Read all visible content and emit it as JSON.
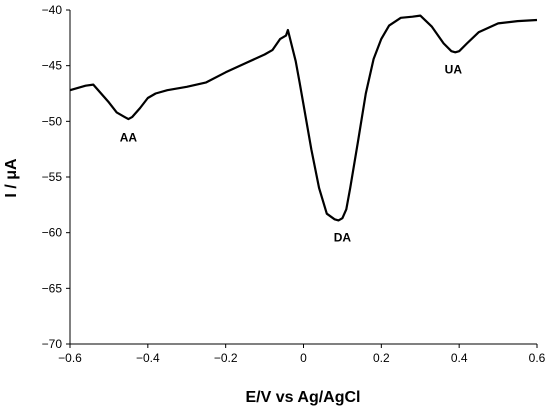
{
  "chart_data": {
    "type": "line",
    "title": "",
    "xlabel": "E/V vs Ag/AgCl",
    "ylabel": "I / μA",
    "xlim": [
      -0.6,
      0.6
    ],
    "ylim": [
      -70,
      -40
    ],
    "grid": false,
    "legend": "none",
    "x_ticks": [
      -0.6,
      -0.4,
      -0.2,
      0,
      0.2,
      0.4,
      0.6
    ],
    "x_tick_labels": [
      "−0.6",
      "−0.4",
      "−0.2",
      "0",
      "0.2",
      "0.4",
      "0.6"
    ],
    "y_ticks": [
      -70,
      -65,
      -60,
      -55,
      -50,
      -45,
      -40
    ],
    "y_tick_labels": [
      "−70",
      "−65",
      "−60",
      "−55",
      "−50",
      "−45",
      "−40"
    ],
    "line_color": "#000000",
    "series": [
      {
        "x": [
          -0.6,
          -0.58,
          -0.56,
          -0.54,
          -0.52,
          -0.5,
          -0.48,
          -0.46,
          -0.45,
          -0.44,
          -0.42,
          -0.4,
          -0.38,
          -0.35,
          -0.3,
          -0.25,
          -0.2,
          -0.15,
          -0.1,
          -0.08,
          -0.06,
          -0.045,
          -0.04,
          -0.03,
          -0.02,
          -0.01,
          0.0,
          0.02,
          0.04,
          0.06,
          0.08,
          0.09,
          0.1,
          0.11,
          0.12,
          0.14,
          0.16,
          0.18,
          0.2,
          0.22,
          0.25,
          0.28,
          0.3,
          0.33,
          0.36,
          0.38,
          0.39,
          0.4,
          0.42,
          0.45,
          0.5,
          0.55,
          0.6
        ],
        "y": [
          -47.2,
          -47.0,
          -46.8,
          -46.7,
          -47.5,
          -48.3,
          -49.2,
          -49.6,
          -49.8,
          -49.6,
          -48.8,
          -47.9,
          -47.5,
          -47.2,
          -46.9,
          -46.5,
          -45.6,
          -44.8,
          -44.0,
          -43.6,
          -42.6,
          -42.3,
          -41.8,
          -43.2,
          -44.6,
          -46.5,
          -48.5,
          -52.5,
          -56.0,
          -58.3,
          -58.8,
          -58.9,
          -58.7,
          -57.9,
          -56.0,
          -51.8,
          -47.5,
          -44.4,
          -42.6,
          -41.4,
          -40.7,
          -40.6,
          -40.5,
          -41.5,
          -43.0,
          -43.7,
          -43.8,
          -43.7,
          -43.0,
          -42.0,
          -41.2,
          -41.0,
          -40.9
        ]
      }
    ],
    "annotations": [
      {
        "text": "AA",
        "x": -0.45,
        "y": -51.8
      },
      {
        "text": "DA",
        "x": 0.1,
        "y": -60.8
      },
      {
        "text": "UA",
        "x": 0.385,
        "y": -45.7
      }
    ]
  }
}
